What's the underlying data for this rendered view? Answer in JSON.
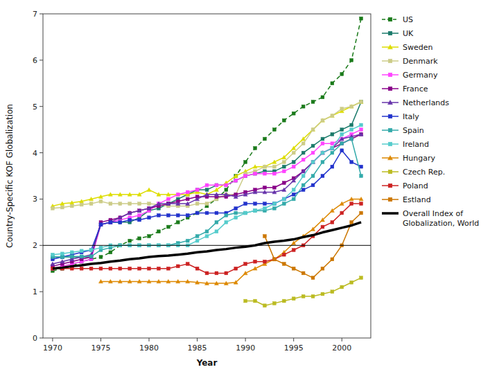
{
  "chart_data": {
    "type": "line",
    "x_label": "Year",
    "y_label": "Country-Specific KOF Globalization",
    "x": [
      1970,
      1971,
      1972,
      1973,
      1974,
      1975,
      1976,
      1977,
      1978,
      1979,
      1980,
      1981,
      1982,
      1983,
      1984,
      1985,
      1986,
      1987,
      1988,
      1989,
      1990,
      1991,
      1992,
      1993,
      1994,
      1995,
      1996,
      1997,
      1998,
      1999,
      2000,
      2001,
      2002
    ],
    "series": [
      {
        "name": "US",
        "color": "#1a7a1a",
        "marker": "square",
        "line_style": "dashed",
        "values": [
          1.45,
          1.5,
          1.55,
          1.65,
          1.7,
          1.75,
          1.85,
          2.0,
          2.1,
          2.15,
          2.2,
          2.3,
          2.4,
          2.5,
          2.6,
          2.7,
          2.85,
          3.0,
          3.2,
          3.5,
          3.8,
          4.1,
          4.3,
          4.5,
          4.7,
          4.85,
          5.0,
          5.1,
          5.2,
          5.5,
          5.7,
          6.0,
          6.9
        ]
      },
      {
        "name": "UK",
        "color": "#1a7a6a",
        "marker": "square",
        "line_style": "solid",
        "values": [
          1.75,
          1.75,
          1.75,
          1.75,
          1.75,
          2.45,
          2.5,
          2.5,
          2.5,
          2.6,
          2.75,
          2.8,
          2.9,
          3.0,
          3.1,
          3.2,
          3.2,
          3.3,
          3.3,
          3.4,
          3.5,
          3.55,
          3.6,
          3.6,
          3.7,
          3.8,
          4.0,
          4.15,
          4.3,
          4.4,
          4.5,
          4.6,
          5.1
        ]
      },
      {
        "name": "Sweden",
        "color": "#dddd00",
        "marker": "triangle",
        "line_style": "solid",
        "values": [
          2.85,
          2.9,
          2.92,
          2.95,
          3.0,
          3.05,
          3.1,
          3.1,
          3.1,
          3.1,
          3.2,
          3.1,
          3.1,
          3.1,
          3.1,
          3.15,
          3.1,
          3.2,
          3.35,
          3.5,
          3.6,
          3.7,
          3.7,
          3.8,
          3.9,
          4.1,
          4.3,
          4.5,
          4.7,
          4.8,
          4.9,
          5.0,
          5.1
        ]
      },
      {
        "name": "Denmark",
        "color": "#cccc88",
        "marker": "square",
        "line_style": "solid",
        "values": [
          2.8,
          2.82,
          2.85,
          2.88,
          2.9,
          2.95,
          2.9,
          2.9,
          2.9,
          2.9,
          2.9,
          2.88,
          2.85,
          2.85,
          2.85,
          2.9,
          2.9,
          3.0,
          3.1,
          3.1,
          3.55,
          3.6,
          3.7,
          3.7,
          3.8,
          4.0,
          4.2,
          4.5,
          4.7,
          4.8,
          4.95,
          5.0,
          5.1
        ]
      },
      {
        "name": "Germany",
        "color": "#ff44ff",
        "marker": "square",
        "line_style": "solid",
        "values": [
          1.5,
          1.55,
          1.6,
          1.65,
          1.7,
          2.45,
          2.5,
          2.55,
          2.6,
          2.65,
          2.75,
          2.9,
          3.0,
          3.1,
          3.15,
          3.2,
          3.3,
          3.3,
          3.3,
          3.4,
          3.5,
          3.55,
          3.55,
          3.55,
          3.6,
          3.7,
          3.85,
          4.0,
          4.2,
          4.2,
          4.3,
          4.4,
          4.5
        ]
      },
      {
        "name": "France",
        "color": "#880088",
        "marker": "square",
        "line_style": "solid",
        "values": [
          1.55,
          1.6,
          1.65,
          1.7,
          1.75,
          2.5,
          2.55,
          2.6,
          2.7,
          2.75,
          2.8,
          2.85,
          2.9,
          2.95,
          3.0,
          3.05,
          3.05,
          3.05,
          3.05,
          3.1,
          3.15,
          3.2,
          3.25,
          3.25,
          3.35,
          3.45,
          3.6,
          3.8,
          4.0,
          4.1,
          4.2,
          4.3,
          4.4
        ]
      },
      {
        "name": "Netherlands",
        "color": "#6633aa",
        "marker": "triangle",
        "line_style": "solid",
        "values": [
          1.6,
          1.65,
          1.7,
          1.75,
          1.8,
          2.45,
          2.5,
          2.6,
          2.7,
          2.75,
          2.8,
          2.9,
          2.9,
          2.9,
          2.9,
          3.0,
          3.1,
          3.1,
          3.1,
          3.05,
          3.1,
          3.15,
          3.15,
          3.15,
          3.2,
          3.4,
          3.6,
          3.8,
          4.0,
          4.1,
          4.3,
          4.35,
          4.4
        ]
      },
      {
        "name": "Italy",
        "color": "#2233cc",
        "marker": "square",
        "line_style": "solid",
        "values": [
          1.7,
          1.75,
          1.8,
          1.85,
          1.9,
          2.45,
          2.5,
          2.5,
          2.55,
          2.55,
          2.6,
          2.65,
          2.65,
          2.65,
          2.65,
          2.7,
          2.7,
          2.7,
          2.7,
          2.8,
          2.9,
          2.9,
          2.9,
          2.9,
          3.0,
          3.1,
          3.2,
          3.3,
          3.5,
          3.7,
          4.05,
          3.8,
          3.7
        ]
      },
      {
        "name": "Spain",
        "color": "#33aaaa",
        "marker": "square",
        "line_style": "solid",
        "values": [
          1.75,
          1.75,
          1.76,
          1.76,
          1.76,
          1.9,
          1.95,
          2.0,
          2.0,
          2.0,
          2.0,
          2.0,
          2.0,
          2.05,
          2.1,
          2.2,
          2.3,
          2.5,
          2.65,
          2.7,
          2.7,
          2.75,
          2.75,
          2.8,
          2.9,
          3.0,
          3.3,
          3.5,
          3.8,
          4.0,
          4.2,
          4.3,
          3.5
        ]
      },
      {
        "name": "Ireland",
        "color": "#55cccc",
        "marker": "square",
        "line_style": "solid",
        "values": [
          1.8,
          1.82,
          1.85,
          1.88,
          1.9,
          1.95,
          2.0,
          2.0,
          2.0,
          2.0,
          2.0,
          2.0,
          2.0,
          2.0,
          2.0,
          2.1,
          2.2,
          2.3,
          2.5,
          2.6,
          2.7,
          2.75,
          2.8,
          2.9,
          3.0,
          3.2,
          3.5,
          3.8,
          4.0,
          4.1,
          4.4,
          4.5,
          4.6
        ]
      },
      {
        "name": "Hungary",
        "color": "#dd8800",
        "marker": "triangle",
        "line_style": "solid",
        "values": [
          null,
          null,
          null,
          null,
          null,
          1.22,
          1.22,
          1.22,
          1.22,
          1.22,
          1.22,
          1.22,
          1.22,
          1.22,
          1.22,
          1.2,
          1.18,
          1.18,
          1.18,
          1.2,
          1.4,
          1.5,
          1.6,
          1.7,
          1.85,
          2.05,
          2.2,
          2.35,
          2.55,
          2.75,
          2.9,
          3.0,
          3.0
        ]
      },
      {
        "name": "Czech Rep.",
        "color": "#bbbb22",
        "marker": "square",
        "line_style": "solid",
        "values": [
          null,
          null,
          null,
          null,
          null,
          null,
          null,
          null,
          null,
          null,
          null,
          null,
          null,
          null,
          null,
          null,
          null,
          null,
          null,
          null,
          0.8,
          0.8,
          0.7,
          0.75,
          0.8,
          0.85,
          0.9,
          0.9,
          0.95,
          1.0,
          1.1,
          1.2,
          1.3
        ]
      },
      {
        "name": "Poland",
        "color": "#cc2222",
        "marker": "square",
        "line_style": "solid",
        "values": [
          1.5,
          1.5,
          1.5,
          1.5,
          1.5,
          1.5,
          1.5,
          1.5,
          1.5,
          1.5,
          1.5,
          1.5,
          1.5,
          1.55,
          1.6,
          1.5,
          1.4,
          1.4,
          1.4,
          1.5,
          1.6,
          1.65,
          1.65,
          1.7,
          1.8,
          1.9,
          2.0,
          2.2,
          2.4,
          2.5,
          2.7,
          2.9,
          2.9
        ]
      },
      {
        "name": "Estland",
        "color": "#cc7700",
        "marker": "square",
        "line_style": "solid",
        "values": [
          null,
          null,
          null,
          null,
          null,
          null,
          null,
          null,
          null,
          null,
          null,
          null,
          null,
          null,
          null,
          null,
          null,
          null,
          null,
          null,
          null,
          null,
          2.2,
          1.7,
          1.6,
          1.5,
          1.4,
          1.3,
          1.5,
          1.7,
          2.0,
          2.5,
          2.7
        ]
      },
      {
        "name": "Overall Index of\nGlobalization, World",
        "color": "#000000",
        "marker": null,
        "line_style": "solid",
        "values": [
          1.5,
          1.52,
          1.55,
          1.57,
          1.6,
          1.62,
          1.65,
          1.67,
          1.7,
          1.72,
          1.75,
          1.77,
          1.78,
          1.8,
          1.82,
          1.85,
          1.87,
          1.9,
          1.92,
          1.95,
          1.97,
          2.0,
          2.05,
          2.08,
          2.1,
          2.13,
          2.18,
          2.22,
          2.28,
          2.33,
          2.38,
          2.43,
          2.5
        ]
      }
    ],
    "reference_line": 2.0,
    "xlim": [
      1969,
      2003
    ],
    "ylim": [
      0,
      7
    ],
    "xticks": [
      1970,
      1975,
      1980,
      1985,
      1990,
      1995,
      2000
    ],
    "yticks": [
      0,
      1,
      2,
      3,
      4,
      5,
      6,
      7
    ],
    "grid": false,
    "legend": "right"
  }
}
